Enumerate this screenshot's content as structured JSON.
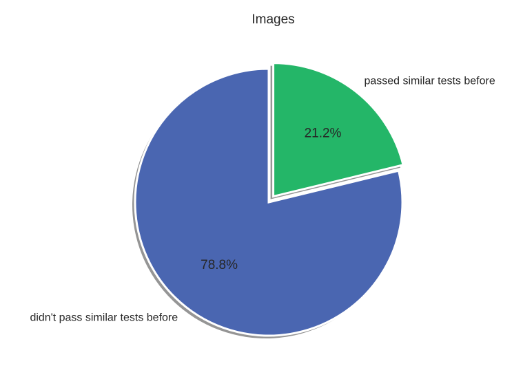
{
  "chart_data": {
    "type": "pie",
    "title": "Images",
    "slices": [
      {
        "label": "passed similar tests before",
        "value": 21.2,
        "pct_label": "21.2%",
        "color": "#24b668",
        "explode": true
      },
      {
        "label": "didn't pass similar tests before",
        "value": 78.8,
        "pct_label": "78.8%",
        "color": "#4a66b1",
        "explode": false
      }
    ],
    "start_angle": "top (12 o'clock)",
    "direction": "clockwise",
    "shadow": true,
    "shadow_color": "#8a8a8a"
  }
}
